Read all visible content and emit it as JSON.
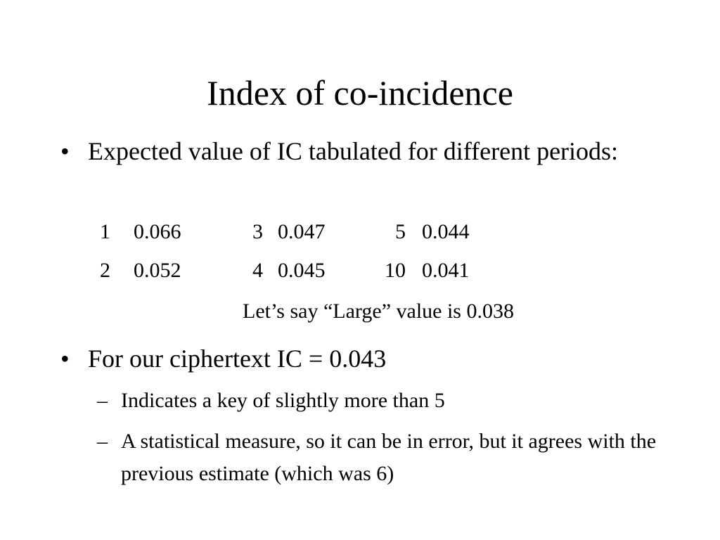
{
  "title": "Index of co-incidence",
  "bullets": [
    {
      "text": "Expected value of IC tabulated for different periods:",
      "table": {
        "rows": [
          [
            "1",
            "0.066",
            "3",
            "0.047",
            "5",
            "0.044"
          ],
          [
            "2",
            "0.052",
            "4",
            "0.045",
            "10",
            "0.041"
          ]
        ]
      },
      "note": "Let’s say “Large” value is 0.038"
    },
    {
      "text": "For our ciphertext IC = 0.043",
      "subbullets": [
        "Indicates a key of slightly more than 5",
        "A statistical measure, so it can be in error, but it agrees with the previous estimate (which was 6)"
      ]
    }
  ]
}
